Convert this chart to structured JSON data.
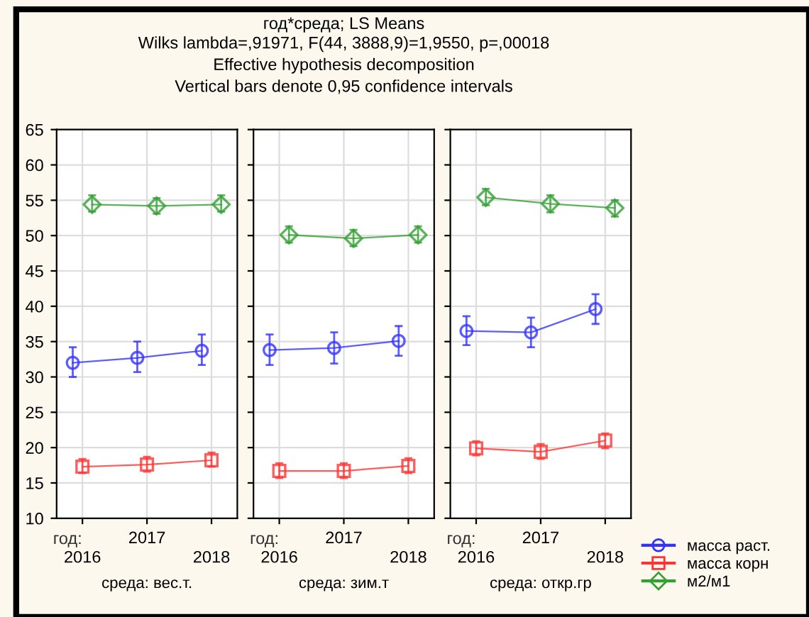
{
  "chart_data": [
    {
      "type": "line",
      "xlabel": "год:",
      "categories": [
        "2016",
        "2017",
        "2018"
      ],
      "ylim": [
        10,
        65
      ],
      "yticks": [
        10,
        15,
        20,
        25,
        30,
        35,
        40,
        45,
        50,
        55,
        60,
        65
      ],
      "grid": true,
      "legend": false,
      "annotations": [
        "среда: вес.т."
      ],
      "series": [
        {
          "color": "#3333ff",
          "marker": "circle",
          "values": [
            32.0,
            32.7,
            33.7
          ],
          "errors": [
            [
              30.0,
              34.2
            ],
            [
              30.7,
              35.0
            ],
            [
              31.7,
              36.0
            ]
          ]
        },
        {
          "color": "#ff3333",
          "marker": "square",
          "values": [
            17.3,
            17.6,
            18.2
          ],
          "errors": [
            [
              16.4,
              18.4
            ],
            [
              16.6,
              18.7
            ],
            [
              17.3,
              19.3
            ]
          ]
        },
        {
          "color": "#33a033",
          "marker": "diamond",
          "values": [
            54.4,
            54.2,
            54.4
          ],
          "errors": [
            [
              53.4,
              55.7
            ],
            [
              53.1,
              55.3
            ],
            [
              53.4,
              55.7
            ]
          ]
        }
      ]
    },
    {
      "type": "line",
      "title": "год*среда; LS Means",
      "subtitle": "Wilks lambda=,91971, F(44, 3888,9)=1,9550, p=,00018\nEffective hypothesis decomposition\nVertical bars denote 0,95 confidence intervals",
      "xlabel": "год:",
      "categories": [
        "2016",
        "2017",
        "2018"
      ],
      "ylim": [
        10,
        65
      ],
      "yticks": [
        10,
        15,
        20,
        25,
        30,
        35,
        40,
        45,
        50,
        55,
        60,
        65
      ],
      "tick_labels": "x",
      "grid": true,
      "legend": false,
      "annotations": [
        "среда: зим.т"
      ],
      "series": [
        {
          "color": "#3333ff",
          "marker": "circle",
          "values": [
            33.8,
            34.1,
            35.1
          ],
          "errors": [
            [
              31.7,
              36.0
            ],
            [
              31.9,
              36.3
            ],
            [
              33.0,
              37.2
            ]
          ]
        },
        {
          "color": "#ff3333",
          "marker": "square",
          "values": [
            16.7,
            16.7,
            17.4
          ],
          "errors": [
            [
              15.7,
              17.8
            ],
            [
              15.7,
              17.8
            ],
            [
              16.4,
              18.5
            ]
          ]
        },
        {
          "color": "#33a033",
          "marker": "diamond",
          "values": [
            50.1,
            49.6,
            50.1
          ],
          "errors": [
            [
              49.0,
              51.3
            ],
            [
              48.5,
              50.8
            ],
            [
              49.0,
              51.3
            ]
          ]
        }
      ]
    },
    {
      "type": "line",
      "xlabel": "год:",
      "categories": [
        "2016",
        "2017",
        "2018"
      ],
      "ylim": [
        10,
        65
      ],
      "yticks": [
        10,
        15,
        20,
        25,
        30,
        35,
        40,
        45,
        50,
        55,
        60,
        65
      ],
      "tick_labels": "x",
      "grid": true,
      "legend": "bottom right",
      "annotations": [
        "среда: откр.гр"
      ],
      "series": [
        {
          "name": "масса раст.",
          "color": "#3333ff",
          "marker": "circle",
          "values": [
            36.5,
            36.3,
            39.6
          ],
          "errors": [
            [
              34.5,
              38.6
            ],
            [
              34.2,
              38.4
            ],
            [
              37.5,
              41.7
            ]
          ]
        },
        {
          "name": "масса корн",
          "color": "#ff3333",
          "marker": "square",
          "values": [
            19.9,
            19.4,
            21.0
          ],
          "errors": [
            [
              18.9,
              20.9
            ],
            [
              18.4,
              20.5
            ],
            [
              19.9,
              22.0
            ]
          ]
        },
        {
          "name": "м2/м1",
          "color": "#33a033",
          "marker": "diamond",
          "values": [
            55.4,
            54.5,
            53.9
          ],
          "errors": [
            [
              54.3,
              56.6
            ],
            [
              53.3,
              55.7
            ],
            [
              52.7,
              55.0
            ]
          ]
        }
      ]
    }
  ]
}
